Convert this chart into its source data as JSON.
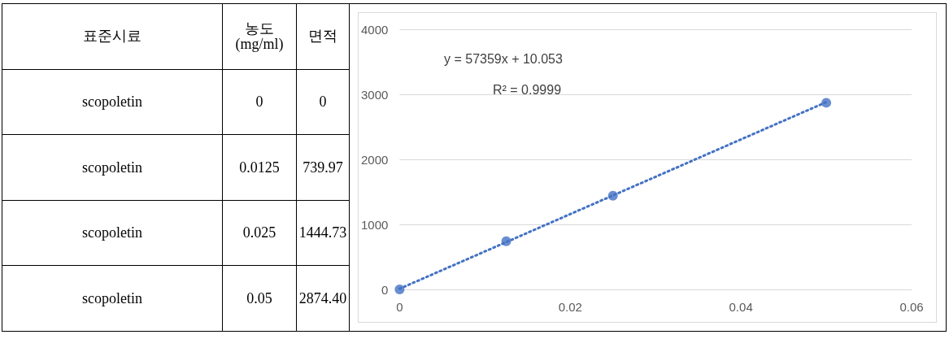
{
  "chart_data": [
    {
      "type": "other",
      "annotations": [
        "표준시료",
        "농도\n(mg/ml)",
        "면적",
        "scopoletin",
        "0",
        "0",
        "scopoletin",
        "0.0125",
        "739.97",
        "scopoletin",
        "0.025",
        "1444.73",
        "scopoletin",
        "0.05",
        "2874.40"
      ]
    },
    {
      "type": "scatter",
      "x": [
        0,
        0.0125,
        0.025,
        0.05
      ],
      "series": [
        {
          "type": "scatter",
          "color": "#4472c4",
          "marker": "circle",
          "values": [
            0,
            740,
            1440,
            2870
          ]
        },
        {
          "type": "line",
          "color": "#4472c4",
          "line_style": "dotted",
          "marker": "none",
          "x": [
            0,
            0.05
          ],
          "values": [
            10,
            2880
          ]
        }
      ],
      "annotations": [
        "y = 57359x + 10.053",
        "R² = 0.9999"
      ],
      "xlim": [
        0,
        0.06
      ],
      "xticks": [
        0,
        0.02,
        0.04,
        0.06
      ],
      "ylim": [
        0,
        4000
      ],
      "yticks": [
        0,
        1000,
        2000,
        3000,
        4000
      ],
      "grid": "y"
    }
  ]
}
